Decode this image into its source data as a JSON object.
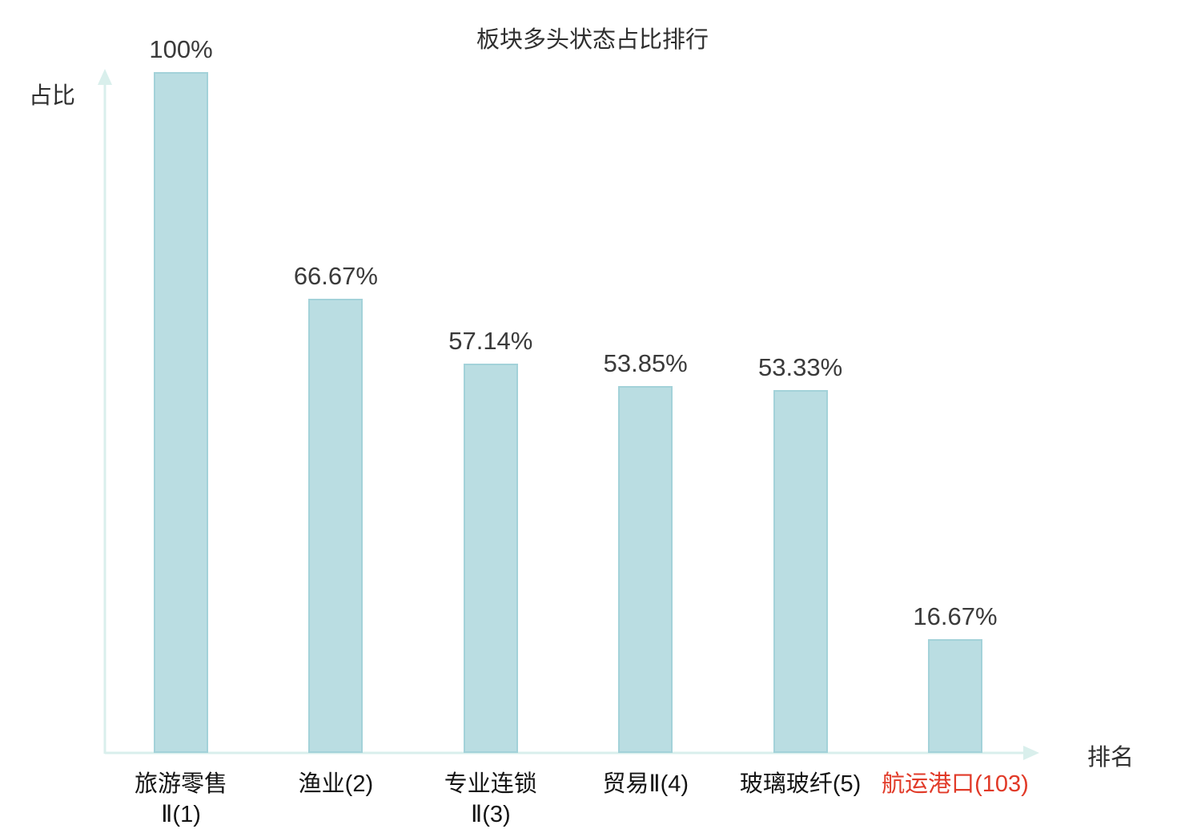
{
  "chart_data": {
    "type": "bar",
    "title": "板块多头状态占比排行",
    "ylabel": "占比",
    "xlabel": "排名",
    "categories": [
      "旅游零售\nⅡ(1)",
      "渔业(2)",
      "专业连锁\nⅡ(3)",
      "贸易Ⅱ(4)",
      "玻璃玻纤(5)",
      "航运港口(103)"
    ],
    "values": [
      100,
      66.67,
      57.14,
      53.85,
      53.33,
      16.67
    ],
    "value_labels": [
      "100%",
      "66.67%",
      "57.14%",
      "53.85%",
      "53.33%",
      "16.67%"
    ],
    "ylim": [
      0,
      100
    ],
    "grid": false,
    "legend": "none",
    "highlight_index": 5,
    "colors": {
      "bar_fill": "#badde2",
      "bar_border": "#a3d2d9",
      "axis": "#d9efec",
      "value_text": "#3a3a3a",
      "category_text": "#141414",
      "highlight_text": "#e13a28"
    }
  }
}
